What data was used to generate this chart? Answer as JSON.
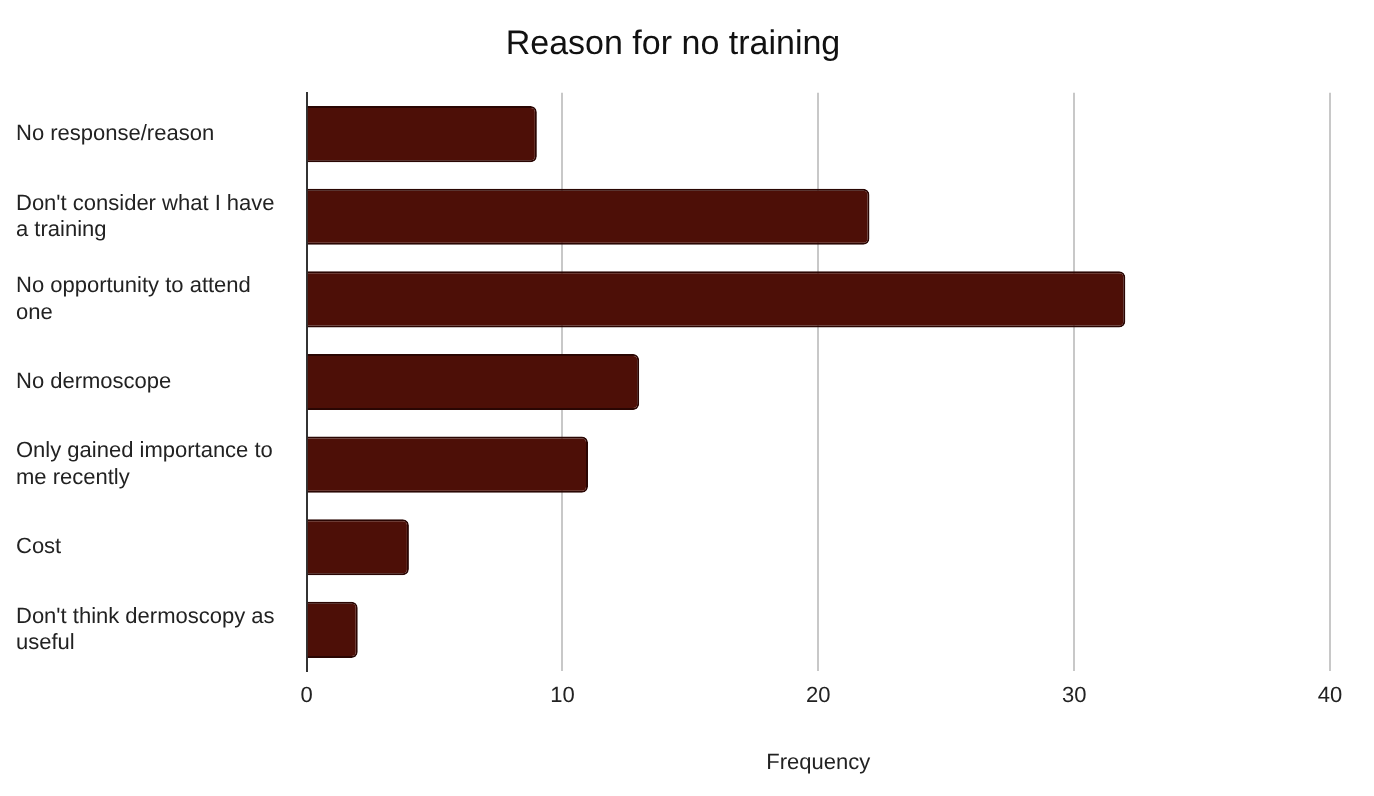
{
  "chart_data": {
    "type": "bar",
    "orientation": "horizontal",
    "title": "Reason for no training",
    "xlabel": "Frequency",
    "categories": [
      "No response/reason",
      "Don't consider what I have a training",
      "No opportunity to attend one",
      "No dermoscope",
      "Only gained importance to me recently",
      "Cost",
      "Don't think dermoscopy as useful"
    ],
    "values": [
      9,
      22,
      32,
      13,
      11,
      4,
      2
    ],
    "color": "#4d0f07",
    "xlim": [
      0,
      40
    ],
    "xticks": [
      0,
      10,
      20,
      30,
      40
    ],
    "grid": "x"
  }
}
